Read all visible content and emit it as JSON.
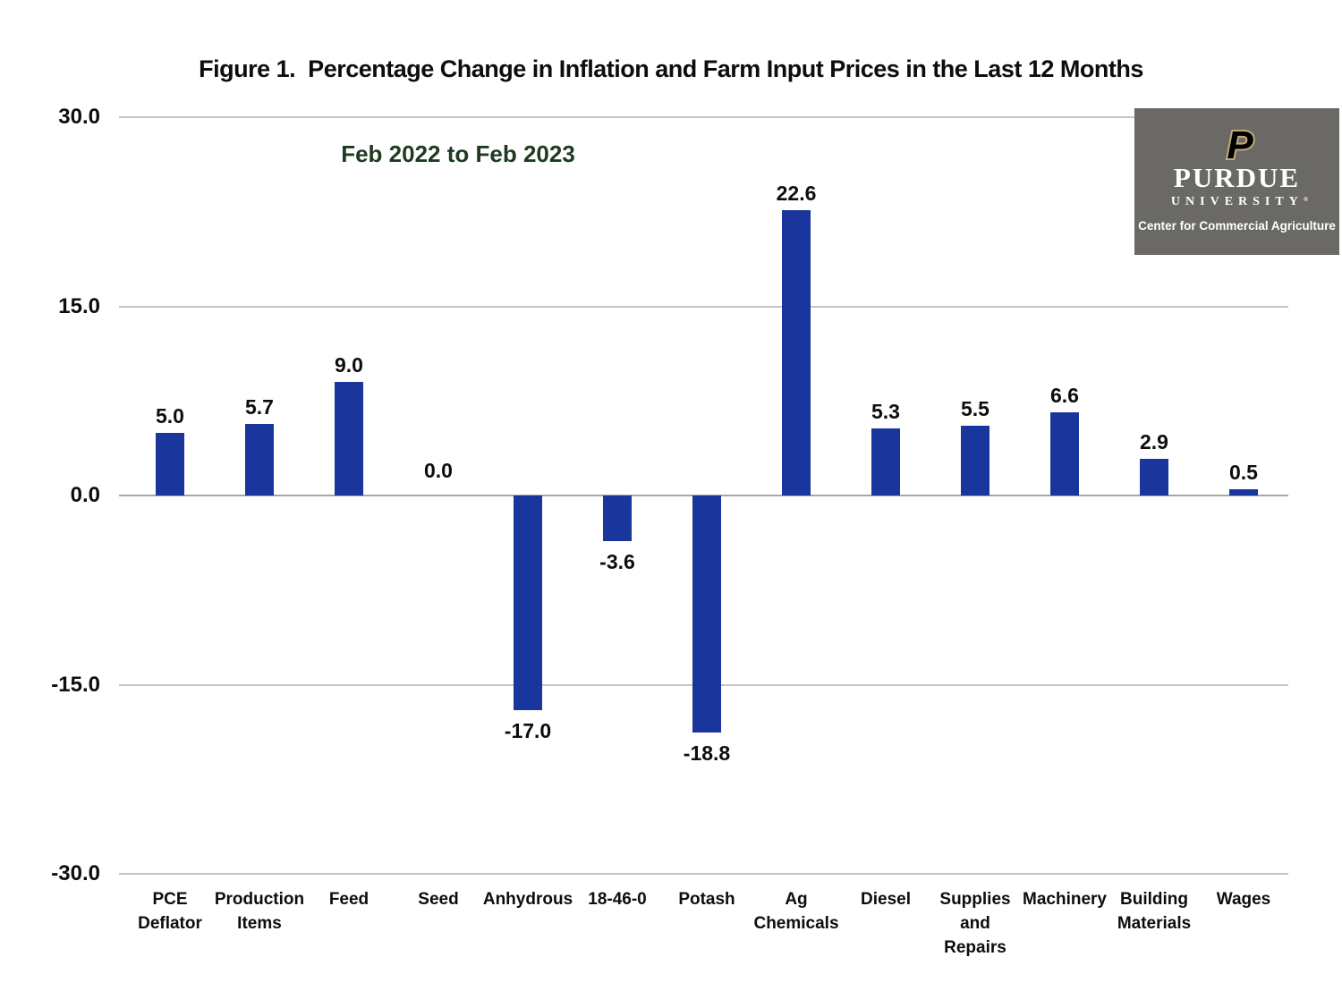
{
  "chart_data": {
    "type": "bar",
    "title": "Figure 1.  Percentage Change in Inflation and Farm Input Prices in the Last 12 Months",
    "subtitle": "Feb 2022 to Feb 2023",
    "categories": [
      "PCE Deflator",
      "Production Items",
      "Feed",
      "Seed",
      "Anhydrous",
      "18-46-0",
      "Potash",
      "Ag Chemicals",
      "Diesel",
      "Supplies and Repairs",
      "Machinery",
      "Building Materials",
      "Wages"
    ],
    "category_lines": [
      [
        "PCE",
        "Deflator"
      ],
      [
        "Production",
        "Items"
      ],
      [
        "Feed"
      ],
      [
        "Seed"
      ],
      [
        "Anhydrous"
      ],
      [
        "18-46-0"
      ],
      [
        "Potash"
      ],
      [
        "Ag",
        "Chemicals"
      ],
      [
        "Diesel"
      ],
      [
        "Supplies",
        "and",
        "Repairs"
      ],
      [
        "Machinery"
      ],
      [
        "Building",
        "Materials"
      ],
      [
        "Wages"
      ]
    ],
    "values": [
      5.0,
      5.7,
      9.0,
      0.0,
      -17.0,
      -3.6,
      -18.8,
      22.6,
      5.3,
      5.5,
      6.6,
      2.9,
      0.5
    ],
    "value_labels": [
      "5.0",
      "5.7",
      "9.0",
      "0.0",
      "-17.0",
      "-3.6",
      "-18.8",
      "22.6",
      "5.3",
      "5.5",
      "6.6",
      "2.9",
      "0.5"
    ],
    "xlabel": "",
    "ylabel": "",
    "ylim": [
      -30,
      30
    ],
    "yticks": [
      30,
      15,
      0,
      -15,
      -30
    ],
    "ytick_labels": [
      "30.0",
      "15.0",
      "0.0",
      "-15.0",
      "-30.0"
    ],
    "grid": true,
    "legend_position": "none",
    "bar_color": "#1a359c",
    "gridline_color": "#c4c4c4",
    "zero_line_color": "#a6a6a6",
    "subtitle_color": "#1e3b20"
  },
  "logo": {
    "p_glyph": "P",
    "org": "PURDUE",
    "org_sub": "UNIVERSITY",
    "registered": "®",
    "unit": "Center for Commercial Agriculture",
    "bg_color": "#6a6966",
    "gold": "#c3ab77"
  }
}
